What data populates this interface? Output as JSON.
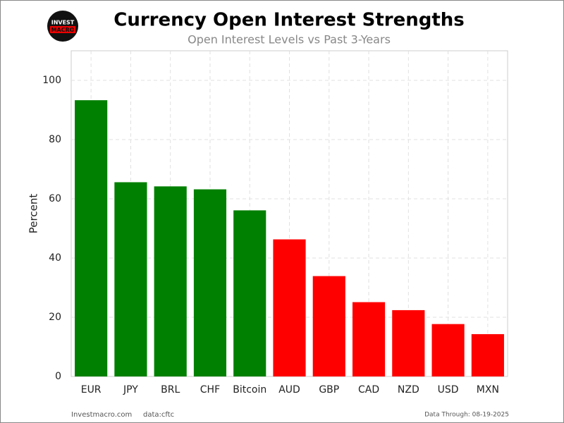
{
  "logo": {
    "line1": "INVEST",
    "line2": "MACRO"
  },
  "footer": {
    "site": "Investmacro.com",
    "source": "data:cftc",
    "date": "Data Through: 08-19-2025"
  },
  "chart_data": {
    "type": "bar",
    "title": "Currency Open Interest Strengths",
    "subtitle": "Open Interest Levels vs Past 3-Years",
    "y_label": "Percent",
    "categories": [
      "EUR",
      "JPY",
      "BRL",
      "CHF",
      "Bitcoin",
      "AUD",
      "GBP",
      "CAD",
      "NZD",
      "USD",
      "MXN"
    ],
    "values": [
      93.3,
      65.6,
      64.2,
      63.2,
      56.1,
      46.3,
      33.9,
      25.1,
      22.4,
      17.7,
      14.3
    ],
    "colors": [
      "#008000",
      "#008000",
      "#008000",
      "#008000",
      "#008000",
      "#ff0000",
      "#ff0000",
      "#ff0000",
      "#ff0000",
      "#ff0000",
      "#ff0000"
    ],
    "ylim": [
      0,
      110
    ],
    "yticks": [
      0,
      20,
      40,
      60,
      80,
      100
    ],
    "grid": true
  }
}
